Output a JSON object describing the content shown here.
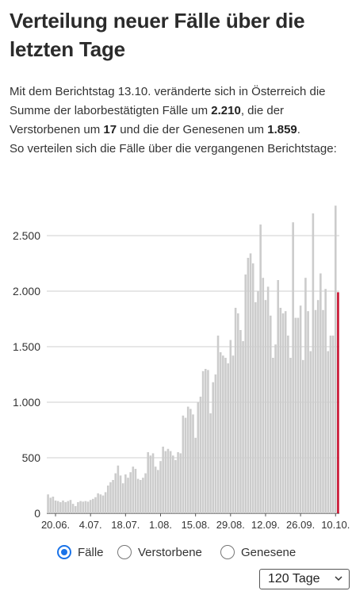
{
  "title": "Verteilung neuer Fälle über die letzten Tage",
  "intro": {
    "p1": "Mit dem Berichtstag 13.10. veränderte sich in Österreich die Summe der laborbestätigten Fälle um ",
    "cases": "2.210",
    "p2": ", die der Verstorbenen um ",
    "deaths": "17",
    "p3": " und die der Genesenen um ",
    "recovered": "1.859",
    "p4": ".",
    "p5": "So verteilen sich die Fälle über die vergangenen Berichtstage:"
  },
  "radios": [
    {
      "label": "Fälle",
      "selected": true
    },
    {
      "label": "Verstorbene",
      "selected": false
    },
    {
      "label": "Genesene",
      "selected": false
    }
  ],
  "range_select": {
    "value": "120 Tage"
  },
  "colors": {
    "bar": "#cccccc",
    "highlight": "#c8102e",
    "axis": "#555555",
    "grid": "#cfcfcf"
  },
  "chart_data": {
    "type": "bar",
    "ylim": [
      0,
      2800
    ],
    "yticks": [
      0,
      500,
      1000,
      1500,
      2000,
      2500
    ],
    "ytick_labels": [
      "0",
      "500",
      "1.000",
      "1.500",
      "2.000",
      "2.500"
    ],
    "xtick_labels": [
      "20.06.",
      "4.07.",
      "18.07.",
      "1.08.",
      "15.08.",
      "29.08.",
      "12.09.",
      "26.09.",
      "10.10."
    ],
    "xtick_index": [
      3,
      17,
      31,
      45,
      59,
      73,
      87,
      101,
      115
    ],
    "grid": true,
    "legend": "none",
    "values": [
      170,
      140,
      150,
      115,
      110,
      100,
      115,
      100,
      110,
      120,
      85,
      65,
      100,
      110,
      105,
      110,
      105,
      120,
      130,
      145,
      180,
      170,
      160,
      190,
      250,
      280,
      300,
      360,
      430,
      340,
      270,
      350,
      320,
      370,
      420,
      400,
      310,
      300,
      320,
      360,
      550,
      520,
      540,
      420,
      390,
      470,
      600,
      560,
      580,
      560,
      520,
      480,
      550,
      540,
      880,
      860,
      960,
      940,
      890,
      680,
      1000,
      1050,
      1280,
      1300,
      1290,
      900,
      1180,
      1250,
      1600,
      1450,
      1420,
      1400,
      1350,
      1560,
      1420,
      1850,
      1800,
      1650,
      1550,
      2150,
      2300,
      2340,
      2250,
      1900,
      2000,
      2600,
      2120,
      1920,
      2040,
      1780,
      1400,
      1520,
      2100,
      1850,
      1800,
      1820,
      1600,
      1400,
      2620,
      1760,
      1760,
      1870,
      1380,
      2120,
      1820,
      1460,
      2700,
      1830,
      1920,
      2160,
      1830,
      2020,
      1460,
      1600,
      1600,
      2770,
      1990
    ]
  }
}
